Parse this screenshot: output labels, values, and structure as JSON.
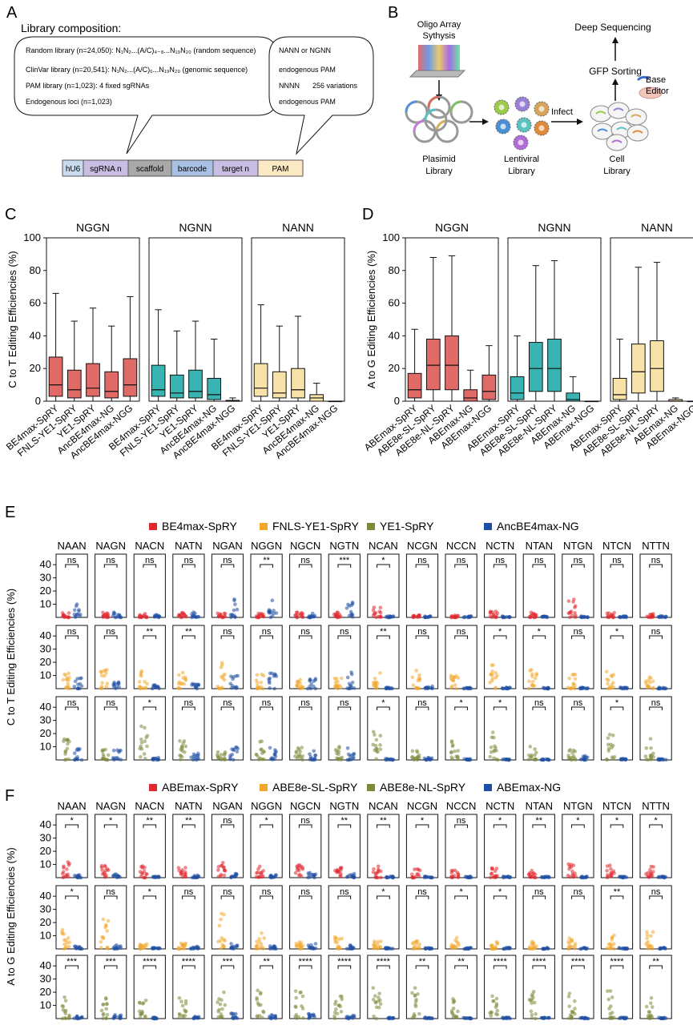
{
  "panels": {
    "A": {
      "letter": "A",
      "title": "Library composition:",
      "lib_lines": [
        "Random library (n=24,050): N₁N₂...(A/C)₄₋₈...N₁₉N₂₀ (random sequence)",
        "ClinVar library (n=20,541): N₁N₂...(A/C)₆...N₁₉N₂₀ (genomic sequence)",
        "PAM library (n=1,023): 4 fixed sgRNAs",
        "Endogenous loci (n=1,023)"
      ],
      "pam_lines": [
        "NANN or NGNN",
        "endogenous PAM",
        "NNNN",
        "256 variations",
        "endogenous PAM"
      ],
      "construct": [
        "hU6",
        "sgRNA n",
        "scaffold",
        "barcode",
        "target n",
        "PAM"
      ]
    },
    "B": {
      "letter": "B",
      "labels": {
        "oligo": "Oligo Array Sythysis",
        "plasmid": "Plasimid Library",
        "lenti": "Lentiviral Library",
        "infect": "Infect",
        "cell": "Cell Library",
        "gfp": "GFP Sorting",
        "base": "Base Editor",
        "deep": "Deep Sequencing"
      }
    }
  },
  "chart_data": [
    {
      "panel": "C",
      "type": "box",
      "ylabel": "C to T Editing Efficiencies (%)",
      "ylim": [
        0,
        100
      ],
      "yticks": [
        0,
        20,
        40,
        60,
        80,
        100
      ],
      "categories": [
        "BE4max-SpRY",
        "FNLS-YE1-SpRY",
        "YE1-SpRY",
        "AncBE4max-NG",
        "AncBE4max-NGG"
      ],
      "subpanels": [
        {
          "name": "NGGN",
          "color": "#e06a66",
          "boxes": [
            {
              "min": 0,
              "q1": 3,
              "median": 10,
              "q3": 27,
              "max": 66
            },
            {
              "min": 0,
              "q1": 2,
              "median": 7,
              "q3": 19,
              "max": 49
            },
            {
              "min": 0,
              "q1": 3,
              "median": 8,
              "q3": 23,
              "max": 57
            },
            {
              "min": 0,
              "q1": 2,
              "median": 6,
              "q3": 18,
              "max": 46
            },
            {
              "min": 0,
              "q1": 3,
              "median": 10,
              "q3": 26,
              "max": 64
            }
          ]
        },
        {
          "name": "NGNN",
          "color": "#3ab3b3",
          "boxes": [
            {
              "min": 0,
              "q1": 3,
              "median": 7,
              "q3": 22,
              "max": 56
            },
            {
              "min": 0,
              "q1": 2,
              "median": 5,
              "q3": 16,
              "max": 43
            },
            {
              "min": 0,
              "q1": 2,
              "median": 6,
              "q3": 19,
              "max": 49
            },
            {
              "min": 0,
              "q1": 1,
              "median": 4,
              "q3": 14,
              "max": 38
            },
            {
              "min": 0,
              "q1": 0,
              "median": 0,
              "q3": 0.5,
              "max": 2
            }
          ]
        },
        {
          "name": "NANN",
          "color": "#f7e2a8",
          "boxes": [
            {
              "min": 0,
              "q1": 3,
              "median": 8,
              "q3": 23,
              "max": 59
            },
            {
              "min": 0,
              "q1": 2,
              "median": 5,
              "q3": 18,
              "max": 46
            },
            {
              "min": 0,
              "q1": 2,
              "median": 7,
              "q3": 20,
              "max": 52
            },
            {
              "min": 0,
              "q1": 0,
              "median": 2,
              "q3": 4,
              "max": 11
            },
            {
              "min": 0,
              "q1": 0,
              "median": 0,
              "q3": 0,
              "max": 0
            }
          ]
        }
      ]
    },
    {
      "panel": "D",
      "type": "box",
      "ylabel": "A to G Editing Efficiencies (%)",
      "ylim": [
        0,
        100
      ],
      "yticks": [
        0,
        20,
        40,
        60,
        80,
        100
      ],
      "categories": [
        "ABEmax-SpRY",
        "ABE8e-SL-SpRY",
        "ABE8e-NL-SpRY",
        "ABEmax-NG",
        "ABEmax-NGG"
      ],
      "subpanels": [
        {
          "name": "NGGN",
          "color": "#e06a66",
          "boxes": [
            {
              "min": 0,
              "q1": 2,
              "median": 7,
              "q3": 17,
              "max": 44
            },
            {
              "min": 0,
              "q1": 7,
              "median": 22,
              "q3": 38,
              "max": 88
            },
            {
              "min": 0,
              "q1": 7,
              "median": 22,
              "q3": 40,
              "max": 89
            },
            {
              "min": 0,
              "q1": 0,
              "median": 2,
              "q3": 7,
              "max": 19
            },
            {
              "min": 0,
              "q1": 1,
              "median": 6,
              "q3": 16,
              "max": 34
            }
          ]
        },
        {
          "name": "NGNN",
          "color": "#3ab3b3",
          "boxes": [
            {
              "min": 0,
              "q1": 1,
              "median": 5,
              "q3": 15,
              "max": 40
            },
            {
              "min": 0,
              "q1": 6,
              "median": 20,
              "q3": 36,
              "max": 83
            },
            {
              "min": 0,
              "q1": 6,
              "median": 20,
              "q3": 38,
              "max": 86
            },
            {
              "min": 0,
              "q1": 0,
              "median": 1,
              "q3": 5,
              "max": 15
            },
            {
              "min": 0,
              "q1": 0,
              "median": 0,
              "q3": 0,
              "max": 0
            }
          ]
        },
        {
          "name": "NANN",
          "color": "#f7e2a8",
          "boxes": [
            {
              "min": 0,
              "q1": 1,
              "median": 4,
              "q3": 14,
              "max": 38
            },
            {
              "min": 0,
              "q1": 5,
              "median": 18,
              "q3": 35,
              "max": 82
            },
            {
              "min": 0,
              "q1": 6,
              "median": 20,
              "q3": 37,
              "max": 85
            },
            {
              "min": 0,
              "q1": 0,
              "median": 0,
              "q3": 1,
              "max": 2
            },
            {
              "min": 0,
              "q1": 0,
              "median": 0,
              "q3": 0,
              "max": 0
            }
          ]
        }
      ]
    },
    {
      "panel": "E",
      "type": "scatter",
      "ylabel": "C to T Editing Efficiencies (%)",
      "yticks": [
        10,
        20,
        30,
        40
      ],
      "ylim": [
        0,
        48
      ],
      "legend": [
        {
          "name": "BE4max-SpRY",
          "color": "#e0282e"
        },
        {
          "name": "FNLS-YE1-SpRY",
          "color": "#f2a72b"
        },
        {
          "name": "YE1-SpRY",
          "color": "#7d8a3a"
        },
        {
          "name": "AncBE4max-NG",
          "color": "#1f4fa3"
        }
      ],
      "pams": [
        "NAAN",
        "NAGN",
        "NACN",
        "NATN",
        "NGAN",
        "NGGN",
        "NGCN",
        "NGTN",
        "NCAN",
        "NCGN",
        "NCCN",
        "NCTN",
        "NTAN",
        "NTGN",
        "NTCN",
        "NTTN"
      ],
      "rows": [
        {
          "left": "BE4max-SpRY",
          "right": "AncBE4max-NG",
          "lmax": [
            4,
            4,
            3,
            4,
            4,
            4,
            4,
            4,
            8,
            2,
            2,
            7,
            4,
            14,
            4,
            3
          ],
          "rmax": [
            10,
            4,
            2,
            4,
            16,
            14,
            4,
            12,
            1,
            1,
            1,
            1,
            1,
            1,
            1,
            1
          ],
          "sig": [
            "ns",
            "ns",
            "ns",
            "ns",
            "ns",
            "**",
            "ns",
            "***",
            "*",
            "ns",
            "ns",
            "ns",
            "ns",
            "ns",
            "ns",
            "ns"
          ]
        },
        {
          "left": "FNLS-YE1-SpRY",
          "right": "AncBE4max-NG",
          "lmax": [
            12,
            15,
            14,
            14,
            20,
            12,
            10,
            12,
            13,
            20,
            10,
            18,
            15,
            13,
            16,
            12
          ],
          "rmax": [
            10,
            6,
            3,
            5,
            10,
            12,
            8,
            14,
            1,
            2,
            1,
            1,
            1,
            1,
            1,
            1
          ],
          "sig": [
            "ns",
            "ns",
            "**",
            "**",
            "ns",
            "ns",
            "ns",
            "ns",
            "**",
            "ns",
            "ns",
            "*",
            "*",
            "ns",
            "*",
            "ns"
          ]
        },
        {
          "left": "YE1-SpRY",
          "right": "AncBE4max-NG",
          "lmax": [
            24,
            8,
            27,
            17,
            6,
            15,
            10,
            13,
            22,
            8,
            15,
            22,
            12,
            8,
            20,
            16
          ],
          "rmax": [
            9,
            8,
            2,
            5,
            10,
            14,
            8,
            15,
            1,
            2,
            1,
            1,
            1,
            4,
            1,
            1
          ],
          "sig": [
            "ns",
            "ns",
            "*",
            "ns",
            "ns",
            "ns",
            "ns",
            "ns",
            "*",
            "ns",
            "*",
            "*",
            "ns",
            "ns",
            "*",
            "ns"
          ]
        }
      ]
    },
    {
      "panel": "F",
      "type": "scatter",
      "ylabel": "A to G Editing Efficiencies (%)",
      "yticks": [
        10,
        20,
        30,
        40
      ],
      "ylim": [
        0,
        48
      ],
      "legend": [
        {
          "name": "ABEmax-SpRY",
          "color": "#e0282e"
        },
        {
          "name": "ABE8e-SL-SpRY",
          "color": "#f2a72b"
        },
        {
          "name": "ABE8e-NL-SpRY",
          "color": "#7d8a3a"
        },
        {
          "name": "ABEmax-NG",
          "color": "#1f4fa3"
        }
      ],
      "pams": [
        "NAAN",
        "NAGN",
        "NACN",
        "NATN",
        "NGAN",
        "NGGN",
        "NGCN",
        "NGTN",
        "NCAN",
        "NCGN",
        "NCCN",
        "NCTN",
        "NTAN",
        "NTGN",
        "NTCN",
        "NTTN"
      ],
      "rows": [
        {
          "left": "ABEmax-SpRY",
          "right": "ABEmax-NG",
          "lmax": [
            14,
            11,
            12,
            11,
            12,
            14,
            10,
            10,
            10,
            9,
            8,
            10,
            8,
            12,
            10,
            9
          ],
          "rmax": [
            2,
            3,
            1,
            2,
            4,
            3,
            4,
            3,
            1,
            1,
            1,
            1,
            1,
            1,
            1,
            1
          ],
          "sig": [
            "*",
            "*",
            "**",
            "**",
            "ns",
            "*",
            "ns",
            "**",
            "**",
            "*",
            "ns",
            "*",
            "**",
            "*",
            "*",
            "*"
          ]
        },
        {
          "left": "ABE8e-SL-SpRY",
          "right": "ABEmax-NG",
          "lmax": [
            15,
            26,
            4,
            5,
            30,
            12,
            6,
            10,
            6,
            6,
            10,
            6,
            6,
            10,
            12,
            14
          ],
          "rmax": [
            2,
            3,
            1,
            2,
            4,
            3,
            4,
            3,
            1,
            1,
            1,
            1,
            1,
            1,
            1,
            1
          ],
          "sig": [
            "*",
            "ns",
            "*",
            "ns",
            "ns",
            "ns",
            "ns",
            "ns",
            "*",
            "ns",
            "*",
            "*",
            "ns",
            "ns",
            "**",
            "ns"
          ]
        },
        {
          "left": "ABE8e-NL-SpRY",
          "right": "ABEmax-NG",
          "lmax": [
            18,
            16,
            16,
            16,
            20,
            22,
            22,
            18,
            24,
            24,
            18,
            18,
            22,
            20,
            22,
            16
          ],
          "rmax": [
            2,
            3,
            1,
            2,
            4,
            3,
            4,
            3,
            1,
            1,
            1,
            1,
            1,
            1,
            1,
            1
          ],
          "sig": [
            "***",
            "***",
            "****",
            "****",
            "***",
            "**",
            "****",
            "****",
            "****",
            "**",
            "**",
            "****",
            "****",
            "****",
            "****",
            "**"
          ]
        }
      ]
    }
  ]
}
